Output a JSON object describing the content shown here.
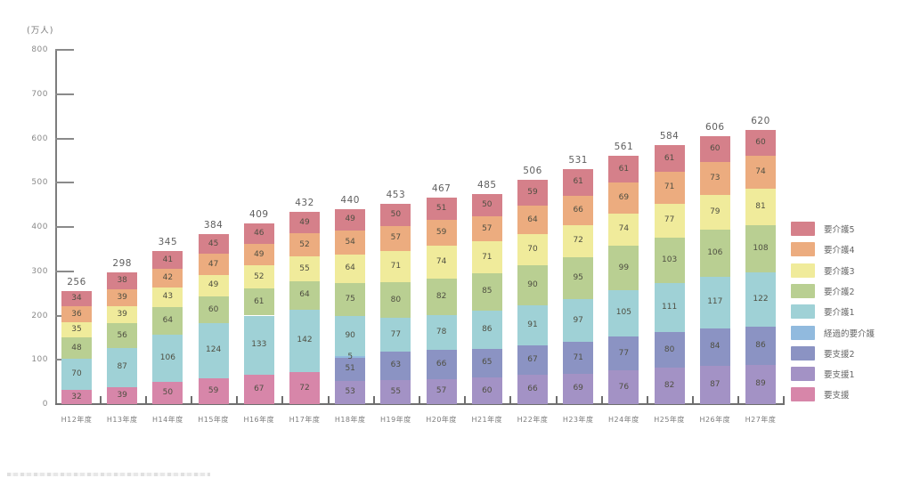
{
  "y_axis": {
    "unit": "(万人)",
    "ticks": [
      0,
      100,
      200,
      300,
      400,
      500,
      600,
      700,
      800
    ]
  },
  "legend": {
    "position": "right",
    "items": [
      {
        "label": "要介護5",
        "color": "#d5808a"
      },
      {
        "label": "要介護4",
        "color": "#ecac7f"
      },
      {
        "label": "要介護3",
        "color": "#f0eb9b"
      },
      {
        "label": "要介護2",
        "color": "#b9cf92"
      },
      {
        "label": "要介護1",
        "color": "#9fd1d6"
      },
      {
        "label": "経過的要介護",
        "color": "#91bade"
      },
      {
        "label": "要支援2",
        "color": "#8b93c3"
      },
      {
        "label": "要支援1",
        "color": "#a392c5"
      },
      {
        "label": "要支援",
        "color": "#d786a9"
      }
    ]
  },
  "chart_data": {
    "type": "bar",
    "stacked": true,
    "title": "",
    "xlabel": "",
    "ylabel": "(万人)",
    "ylim": [
      0,
      800
    ],
    "grid": false,
    "legend_position": "right",
    "categories": [
      "H12年度",
      "H13年度",
      "H14年度",
      "H15年度",
      "H16年度",
      "H17年度",
      "H18年度",
      "H19年度",
      "H20年度",
      "H21年度",
      "H22年度",
      "H23年度",
      "H24年度",
      "H25年度",
      "H26年度",
      "H27年度"
    ],
    "totals": [
      256,
      298,
      345,
      384,
      409,
      432,
      440,
      453,
      467,
      485,
      506,
      531,
      561,
      584,
      606,
      620
    ],
    "series": [
      {
        "name": "要支援",
        "color": "#d786a9",
        "values": [
          32,
          39,
          50,
          59,
          67,
          72,
          null,
          null,
          null,
          null,
          null,
          null,
          null,
          null,
          null,
          null
        ]
      },
      {
        "name": "要支援1",
        "color": "#a392c5",
        "values": [
          null,
          null,
          null,
          null,
          null,
          null,
          53,
          55,
          57,
          60,
          66,
          69,
          76,
          82,
          87,
          89
        ]
      },
      {
        "name": "要支援2",
        "color": "#8b93c3",
        "values": [
          null,
          null,
          null,
          null,
          null,
          null,
          51,
          63,
          66,
          65,
          67,
          71,
          77,
          80,
          84,
          86
        ]
      },
      {
        "name": "経過的要介護",
        "color": "#91bade",
        "values": [
          null,
          null,
          null,
          null,
          null,
          null,
          5,
          null,
          null,
          null,
          null,
          null,
          null,
          null,
          null,
          null
        ]
      },
      {
        "name": "要介護1",
        "color": "#9fd1d6",
        "values": [
          70,
          87,
          106,
          124,
          133,
          142,
          90,
          77,
          78,
          86,
          91,
          97,
          105,
          111,
          117,
          122
        ]
      },
      {
        "name": "要介護2",
        "color": "#b9cf92",
        "values": [
          48,
          56,
          64,
          60,
          61,
          64,
          75,
          80,
          82,
          85,
          90,
          95,
          99,
          103,
          106,
          108
        ]
      },
      {
        "name": "要介護3",
        "color": "#f0eb9b",
        "values": [
          35,
          39,
          43,
          49,
          52,
          55,
          64,
          71,
          74,
          71,
          70,
          72,
          74,
          77,
          79,
          81
        ]
      },
      {
        "name": "要介護4",
        "color": "#ecac7f",
        "values": [
          36,
          39,
          42,
          47,
          49,
          52,
          54,
          57,
          59,
          57,
          64,
          66,
          69,
          71,
          73,
          74
        ]
      },
      {
        "name": "要介護5",
        "color": "#d5808a",
        "values": [
          34,
          38,
          41,
          45,
          46,
          49,
          49,
          50,
          51,
          50,
          59,
          61,
          61,
          61,
          60,
          60
        ]
      }
    ]
  }
}
